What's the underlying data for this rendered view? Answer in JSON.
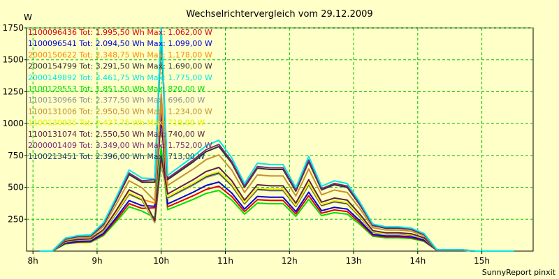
{
  "chart_data": {
    "type": "line",
    "title": "Wechselrichtervergleich vom 29.12.2009",
    "ylabel": "W",
    "xlabel": "",
    "footer": "SunnyReport pinxit",
    "xlim": [
      7.9,
      15.8
    ],
    "ylim": [
      0,
      1750
    ],
    "grid": true,
    "legend_position": "top-left",
    "xticks": [
      {
        "value": 8,
        "label": "8h"
      },
      {
        "value": 9,
        "label": "9h"
      },
      {
        "value": 10,
        "label": "10h"
      },
      {
        "value": 11,
        "label": "11h"
      },
      {
        "value": 12,
        "label": "12h"
      },
      {
        "value": 13,
        "label": "13h"
      },
      {
        "value": 14,
        "label": "14h"
      },
      {
        "value": 15,
        "label": "15h"
      }
    ],
    "yticks": [
      {
        "value": 250,
        "label": "250"
      },
      {
        "value": 500,
        "label": "500"
      },
      {
        "value": 750,
        "label": "750"
      },
      {
        "value": 1000,
        "label": "1000"
      },
      {
        "value": 1250,
        "label": "1250"
      },
      {
        "value": 1500,
        "label": "1500"
      },
      {
        "value": 1750,
        "label": "1750"
      }
    ],
    "x": [
      8.1,
      8.3,
      8.5,
      8.7,
      8.9,
      9.1,
      9.3,
      9.5,
      9.7,
      9.9,
      10.0,
      10.1,
      10.3,
      10.5,
      10.7,
      10.9,
      11.1,
      11.3,
      11.5,
      11.7,
      11.9,
      12.1,
      12.3,
      12.5,
      12.7,
      12.9,
      13.1,
      13.3,
      13.5,
      13.7,
      13.9,
      14.1,
      14.3,
      14.5,
      14.7,
      14.9,
      15.1,
      15.3,
      15.5
    ],
    "series": [
      {
        "name": "1100096436",
        "legend": "1100096436 Tot: 1.995,50 Wh Max: 1.062,00 W",
        "color": "#e00000",
        "scale": 0.62,
        "peak": 1062
      },
      {
        "name": "1100096541",
        "legend": "1100096541 Tot: 2.094,50 Wh Max: 1.099,00 W",
        "color": "#0000e0",
        "scale": 0.66,
        "peak": 1099
      },
      {
        "name": "2000150622",
        "legend": "2000150622 Tot: 2.348,75 Wh Max: 1.178,00 W",
        "color": "#ff8c00",
        "scale": 0.75,
        "peak": 1178
      },
      {
        "name": "2000154799",
        "legend": "2000154799 Tot: 3.291,50 Wh Max: 1.690,00 W",
        "color": "#303030",
        "scale": 1.0,
        "peak": 1690
      },
      {
        "name": "2000149892",
        "legend": "2000149892 Tot: 3.461,75 Wh Max: 1.775,00 W",
        "color": "#00e8e8",
        "scale": 1.06,
        "peak": 1775
      },
      {
        "name": "1100129553",
        "legend": "1100129553 Tot: 1.851,50 Wh Max: 820,00 W",
        "color": "#00e000",
        "scale": 0.58,
        "peak": 820
      },
      {
        "name": "1100130966",
        "legend": "1100130966 Tot: 2.377,50 Wh Max: 696,00 W",
        "color": "#909090",
        "scale": 0.74,
        "peak": 696
      },
      {
        "name": "1100131006",
        "legend": "1100131006 Tot: 2.950,50 Wh Max: 1.234,00 W",
        "color": "#c89030",
        "scale": 0.92,
        "peak": 1234
      },
      {
        "name": "1100130935",
        "legend": "1100130935 Tot: 2.427,75 Wh Max: 719,00 W",
        "color": "#f0f000",
        "scale": 0.76,
        "peak": 719
      },
      {
        "name": "1100131074",
        "legend": "1100131074 Tot: 2.550,50 Wh Max: 740,00 W",
        "color": "#602040",
        "scale": 0.8,
        "peak": 740
      },
      {
        "name": "2000001409",
        "legend": "2000001409 Tot: 3.349,00 Wh Max: 1.752,00 W",
        "color": "#7a2a7a",
        "scale": 1.02,
        "peak": 1752
      },
      {
        "name": "1100213451",
        "legend": "1100213451 Tot: 2.396,00 Wh Max: 713,00 W",
        "color": "#1a3a6a",
        "scale": 0.75,
        "peak": 713
      }
    ],
    "base_profile": [
      0,
      0,
      95,
      115,
      120,
      210,
      400,
      600,
      540,
      1700,
      1700,
      560,
      630,
      700,
      780,
      820,
      690,
      500,
      650,
      640,
      640,
      470,
      700,
      480,
      520,
      500,
      360,
      200,
      180,
      180,
      170,
      130,
      10,
      10,
      10,
      0,
      0,
      0,
      0
    ]
  }
}
